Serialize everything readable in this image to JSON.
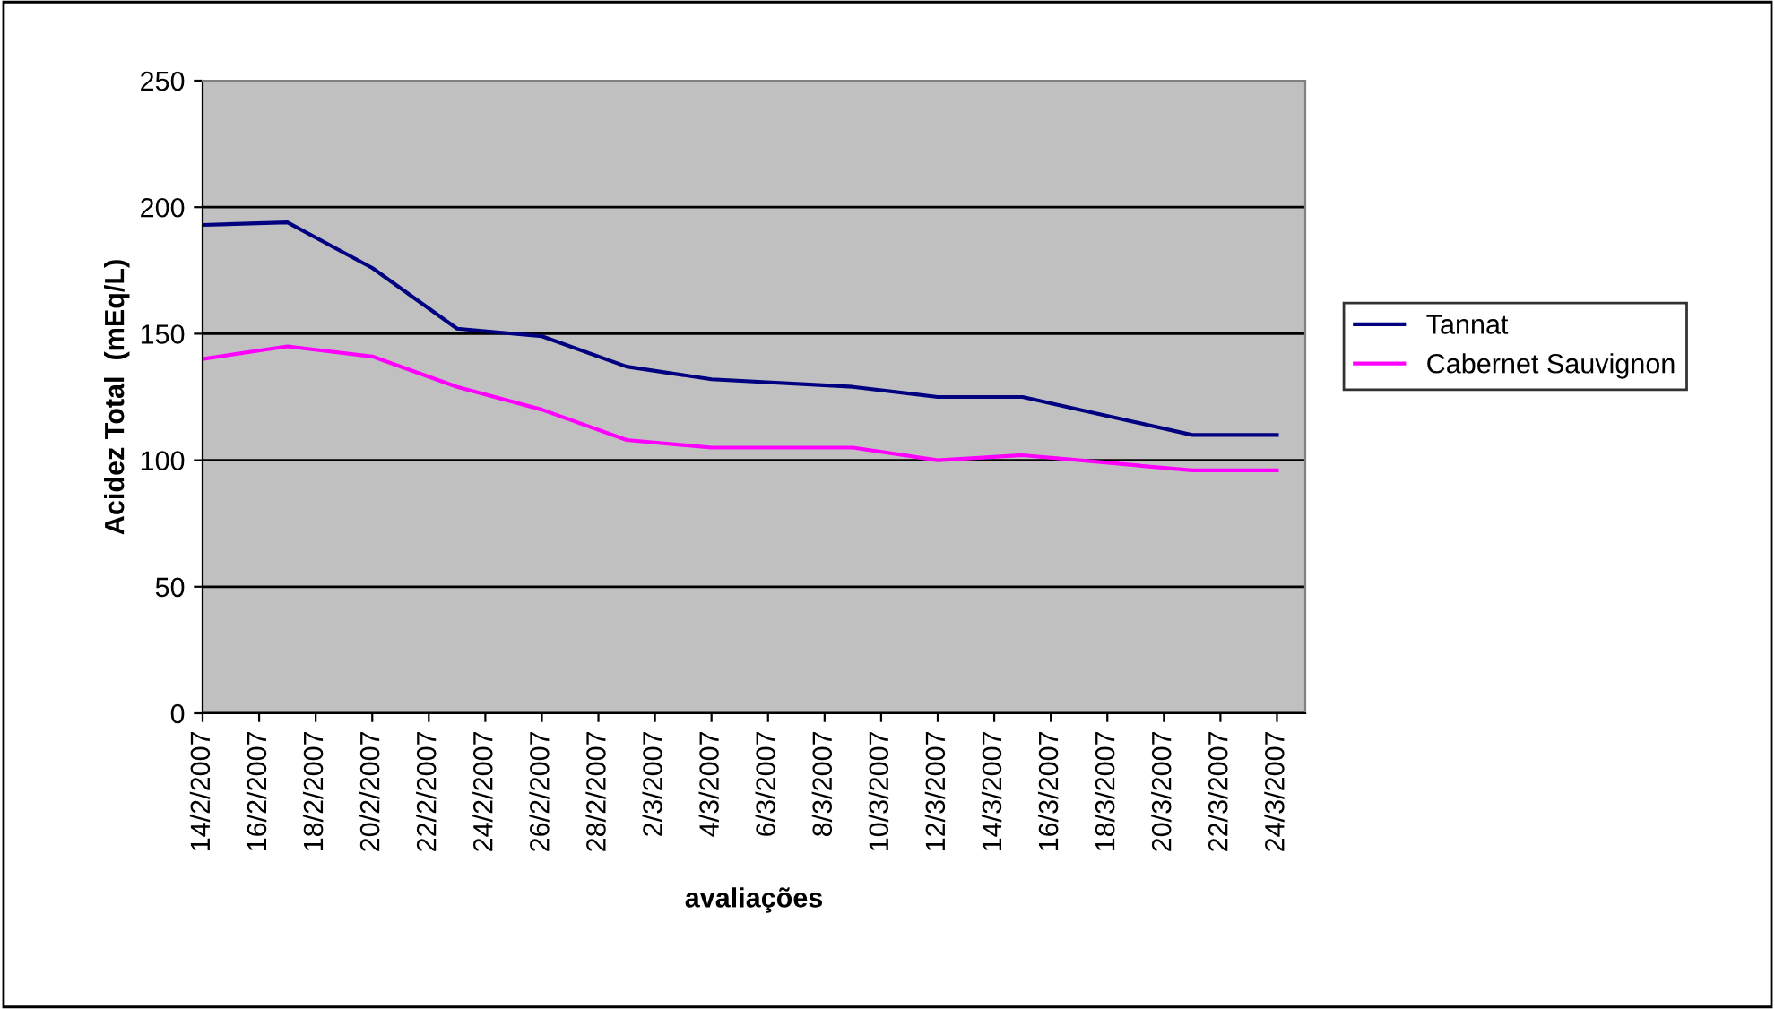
{
  "chart_data": {
    "type": "line",
    "xlabel": "avaliações",
    "ylabel": "Acidez Total  (mEq/L)",
    "x": [
      "2007-02-14",
      "2007-02-17",
      "2007-02-20",
      "2007-02-23",
      "2007-02-26",
      "2007-03-01",
      "2007-03-04",
      "2007-03-09",
      "2007-03-12",
      "2007-03-15",
      "2007-03-21",
      "2007-03-24"
    ],
    "series": [
      {
        "name": "Tannat",
        "color": "#000080",
        "values": [
          193,
          194,
          176,
          152,
          149,
          137,
          132,
          129,
          125,
          125,
          110,
          110
        ]
      },
      {
        "name": "Cabernet Sauvignon",
        "color": "#ff00ff",
        "values": [
          140,
          145,
          141,
          129,
          120,
          108,
          105,
          105,
          100,
          102,
          96,
          96
        ]
      }
    ],
    "xlim": [
      "2007-02-14",
      "2007-03-25"
    ],
    "xticks": [
      {
        "value": "2007-02-14",
        "label": "14/2/2007"
      },
      {
        "value": "2007-02-16",
        "label": "16/2/2007"
      },
      {
        "value": "2007-02-18",
        "label": "18/2/2007"
      },
      {
        "value": "2007-02-20",
        "label": "20/2/2007"
      },
      {
        "value": "2007-02-22",
        "label": "22/2/2007"
      },
      {
        "value": "2007-02-24",
        "label": "24/2/2007"
      },
      {
        "value": "2007-02-26",
        "label": "26/2/2007"
      },
      {
        "value": "2007-02-28",
        "label": "28/2/2007"
      },
      {
        "value": "2007-03-02",
        "label": "2/3/2007"
      },
      {
        "value": "2007-03-04",
        "label": "4/3/2007"
      },
      {
        "value": "2007-03-06",
        "label": "6/3/2007"
      },
      {
        "value": "2007-03-08",
        "label": "8/3/2007"
      },
      {
        "value": "2007-03-10",
        "label": "10/3/2007"
      },
      {
        "value": "2007-03-12",
        "label": "12/3/2007"
      },
      {
        "value": "2007-03-14",
        "label": "14/3/2007"
      },
      {
        "value": "2007-03-16",
        "label": "16/3/2007"
      },
      {
        "value": "2007-03-18",
        "label": "18/3/2007"
      },
      {
        "value": "2007-03-20",
        "label": "20/3/2007"
      },
      {
        "value": "2007-03-22",
        "label": "22/3/2007"
      },
      {
        "value": "2007-03-24",
        "label": "24/3/2007"
      }
    ],
    "ylim": [
      0,
      250
    ],
    "yticks": [
      0,
      50,
      100,
      150,
      200,
      250
    ],
    "grid": "y",
    "legend": "right",
    "marker": "none",
    "line_style": "solid"
  }
}
